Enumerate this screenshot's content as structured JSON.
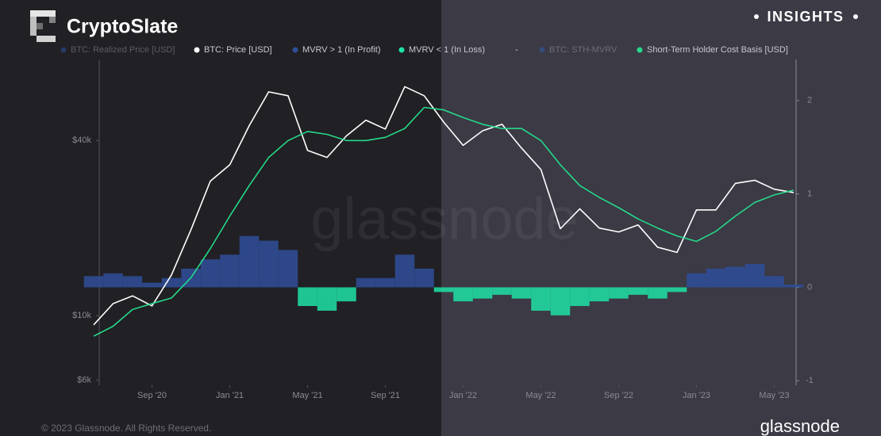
{
  "header": {
    "brand": "CryptoSlate",
    "badge": "INSIGHTS"
  },
  "watermark": "glassnode",
  "footer": {
    "copyright": "© 2023 Glassnode. All Rights Reserved.",
    "logo": "glassnode"
  },
  "chart_data": {
    "type": "line",
    "legend_separator": "-",
    "x": [
      "2020-06",
      "2020-07",
      "2020-08",
      "2020-09",
      "2020-10",
      "2020-11",
      "2020-12",
      "2021-01",
      "2021-02",
      "2021-03",
      "2021-04",
      "2021-05",
      "2021-06",
      "2021-07",
      "2021-08",
      "2021-09",
      "2021-10",
      "2021-11",
      "2021-12",
      "2022-01",
      "2022-02",
      "2022-03",
      "2022-04",
      "2022-05",
      "2022-06",
      "2022-07",
      "2022-08",
      "2022-09",
      "2022-10",
      "2022-11",
      "2022-12",
      "2023-01",
      "2023-02",
      "2023-03",
      "2023-04",
      "2023-05",
      "2023-06"
    ],
    "xlim": [
      "2020-06",
      "2023-06"
    ],
    "xticks": [
      {
        "value": "2020-09",
        "label": "Sep '20"
      },
      {
        "value": "2021-01",
        "label": "Jan '21"
      },
      {
        "value": "2021-05",
        "label": "May '21"
      },
      {
        "value": "2021-09",
        "label": "Sep '21"
      },
      {
        "value": "2022-01",
        "label": "Jan '22"
      },
      {
        "value": "2022-05",
        "label": "May '22"
      },
      {
        "value": "2022-09",
        "label": "Sep '22"
      },
      {
        "value": "2023-01",
        "label": "Jan '23"
      },
      {
        "value": "2023-05",
        "label": "May '23"
      }
    ],
    "ylim": [
      5800,
      76000
    ],
    "log_y": true,
    "yticks": [
      {
        "value": 6000,
        "label": "$6k"
      },
      {
        "value": 10000,
        "label": "$10k"
      },
      {
        "value": 40000,
        "label": "$40k"
      }
    ],
    "y2lim": [
      -1.04,
      2.44
    ],
    "y2ticks": [
      -1,
      0,
      1,
      2
    ],
    "series": [
      {
        "name": "BTC: Realized Price [USD]",
        "color": "#2f6fe0",
        "hidden": true
      },
      {
        "name": "BTC: Price [USD]",
        "color": "#ffffff",
        "type": "line",
        "values": [
          9300,
          11000,
          11700,
          10800,
          13800,
          19700,
          29000,
          33000,
          45000,
          58800,
          57000,
          37000,
          35000,
          41500,
          47000,
          43800,
          61300,
          57000,
          46300,
          38500,
          43200,
          45500,
          37700,
          31800,
          19900,
          23300,
          20000,
          19400,
          20500,
          17200,
          16500,
          23100,
          23100,
          28500,
          29200,
          27200,
          26500
        ]
      },
      {
        "name": "MVRV > 1 (In Profit)",
        "color": "#2f4f9a",
        "type": "bar",
        "axis": "y2",
        "values": [
          0.12,
          0.15,
          0.12,
          0.05,
          0.1,
          0.2,
          0.3,
          0.35,
          0.55,
          0.5,
          0.4,
          null,
          null,
          null,
          0.1,
          0.1,
          0.35,
          0.2,
          null,
          null,
          null,
          null,
          null,
          null,
          null,
          null,
          null,
          null,
          null,
          null,
          null,
          0.15,
          0.2,
          0.22,
          0.25,
          0.12,
          0.03
        ]
      },
      {
        "name": "MVRV < 1 (In Loss)",
        "color": "#1fe3a5",
        "type": "bar",
        "axis": "y2",
        "values": [
          null,
          null,
          null,
          null,
          null,
          null,
          null,
          null,
          null,
          null,
          null,
          -0.2,
          -0.25,
          -0.15,
          null,
          null,
          null,
          null,
          -0.05,
          -0.15,
          -0.12,
          -0.08,
          -0.12,
          -0.25,
          -0.3,
          -0.2,
          -0.15,
          -0.12,
          -0.08,
          -0.12,
          -0.05,
          null,
          null,
          null,
          null,
          null,
          null
        ]
      },
      {
        "name": "BTC: STH-MVRV",
        "color": "#2f6fe0",
        "hidden": true
      },
      {
        "name": "Short-Term Holder Cost Basis [USD]",
        "color": "#25d98a",
        "type": "line",
        "values": [
          8500,
          9200,
          10500,
          11000,
          11500,
          13500,
          17000,
          22000,
          28000,
          35000,
          40000,
          43000,
          42000,
          40000,
          40000,
          41000,
          44000,
          52000,
          51000,
          48000,
          45500,
          44000,
          44000,
          40000,
          33000,
          28000,
          25500,
          23500,
          21500,
          20000,
          18800,
          18000,
          19500,
          22000,
          24500,
          26000,
          27000
        ]
      }
    ]
  }
}
